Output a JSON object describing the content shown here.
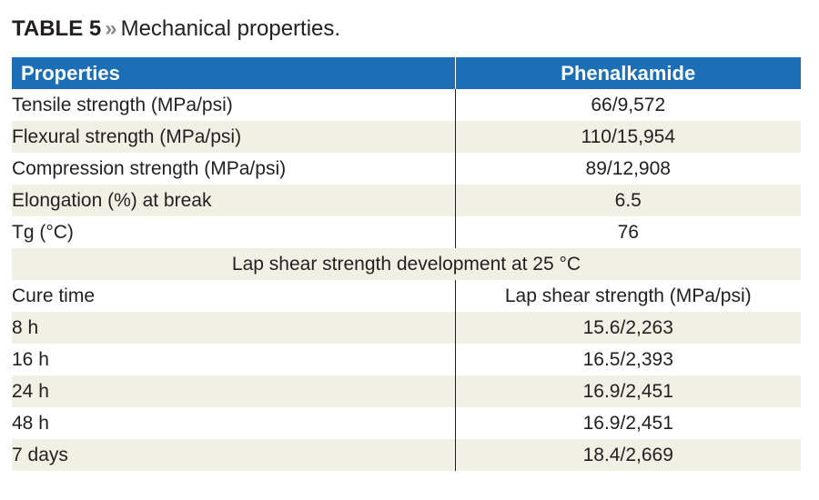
{
  "caption": {
    "label": "TABLE 5",
    "separator": "»",
    "text": "Mechanical properties."
  },
  "table": {
    "headers": [
      "Properties",
      "Phenalkamide"
    ],
    "rows": [
      {
        "property": "Tensile strength (MPa/psi)",
        "value": "66/9,572"
      },
      {
        "property": "Flexural strength (MPa/psi)",
        "value": "110/15,954"
      },
      {
        "property": "Compression strength (MPa/psi)",
        "value": "89/12,908"
      },
      {
        "property": "Elongation (%) at break",
        "value": "6.5"
      },
      {
        "property": "Tg (°C)",
        "value": "76"
      }
    ],
    "section_title": "Lap shear strength development at 25 °C",
    "sub_headers": [
      "Cure time",
      "Lap shear strength (MPa/psi)"
    ],
    "lap_rows": [
      {
        "time": "8 h",
        "value": "15.6/2,263"
      },
      {
        "time": "16 h",
        "value": "16.5/2,393"
      },
      {
        "time": "24 h",
        "value": "16.9/2,451"
      },
      {
        "time": "48 h",
        "value": "16.9/2,451"
      },
      {
        "time": "7 days",
        "value": "18.4/2,669"
      }
    ]
  },
  "colors": {
    "header_bg": "#1c6fb6",
    "stripe_bg": "#f1f0e5",
    "text": "#231f20"
  }
}
